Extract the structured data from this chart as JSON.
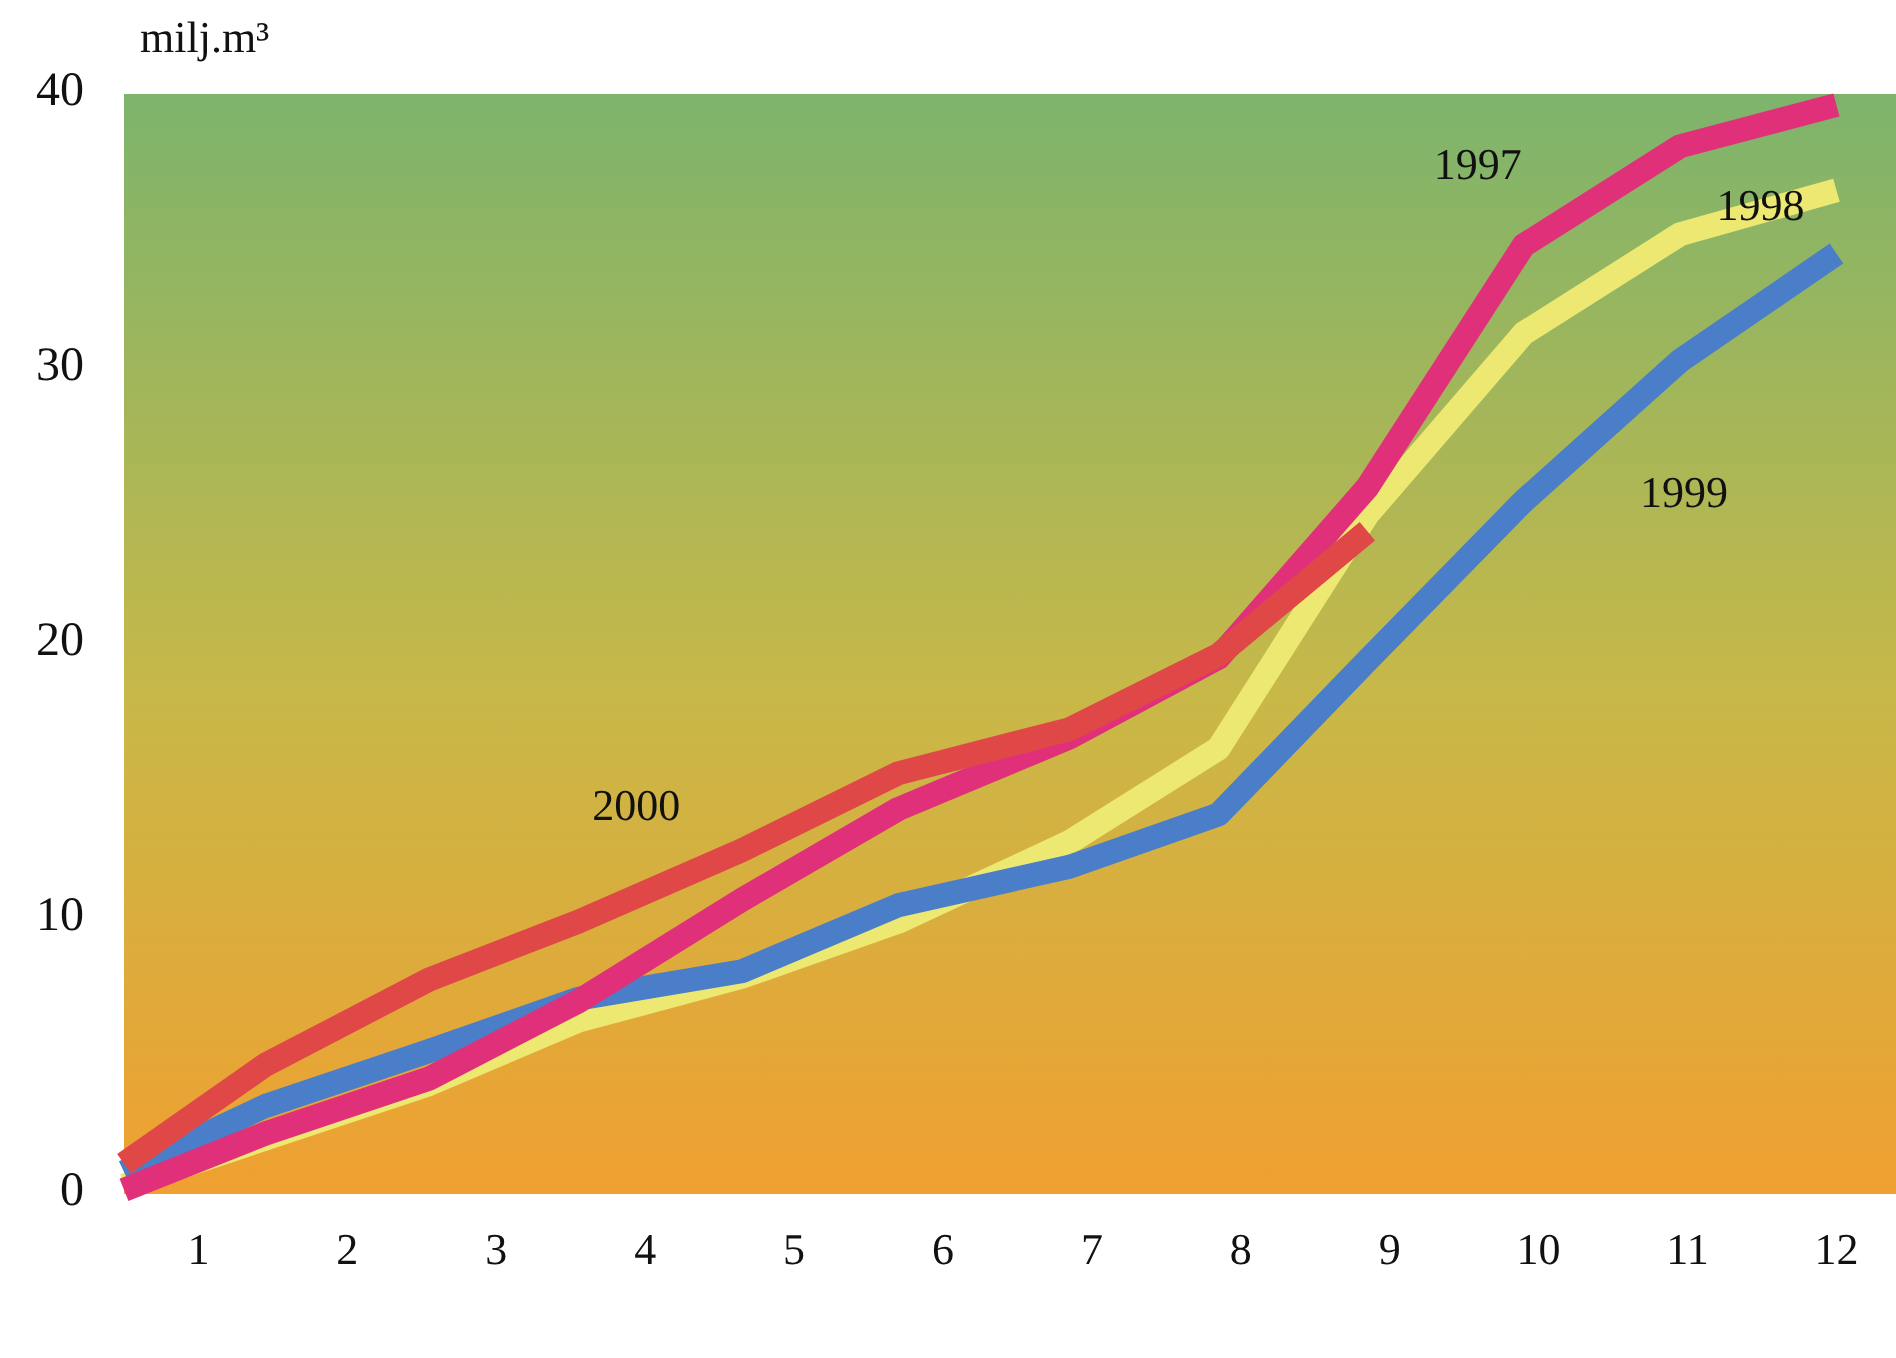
{
  "chart_data": {
    "type": "line",
    "ylabel": "milj.m³",
    "xlim": [
      0.5,
      12.4
    ],
    "xticks": [
      1,
      2,
      3,
      4,
      5,
      6,
      7,
      8,
      9,
      10,
      11,
      12
    ],
    "ylim": [
      0,
      40
    ],
    "yticks": [
      0,
      10,
      20,
      30,
      40
    ],
    "grid": false,
    "marker": "none",
    "line_style": "solid",
    "series": [
      {
        "name": "1998",
        "color": "#ece872",
        "x": [
          0.5,
          2.55,
          3.55,
          4.65,
          5.7,
          6.85,
          7.85,
          8.85,
          9.9,
          10.95,
          12
        ],
        "values": [
          0.3,
          4.0,
          6.3,
          7.9,
          9.9,
          12.8,
          16.2,
          24.7,
          31.3,
          34.9,
          36.5
        ]
      },
      {
        "name": "1999",
        "color": "#4a7ec8",
        "x": [
          0.5,
          1.45,
          2.55,
          3.55,
          4.65,
          5.7,
          6.85,
          7.85,
          8.85,
          9.9,
          10.95,
          12
        ],
        "values": [
          0.8,
          3.2,
          5.2,
          7.1,
          8.1,
          10.5,
          11.9,
          13.8,
          19.4,
          25.2,
          30.3,
          34.2
        ]
      },
      {
        "name": "1997",
        "color": "#e0307a",
        "x": [
          0.5,
          1.45,
          2.55,
          3.55,
          4.65,
          5.7,
          6.85,
          7.85,
          8.85,
          9.9,
          10.95,
          12
        ],
        "values": [
          0.15,
          2.2,
          4.2,
          7.0,
          10.7,
          14.0,
          16.6,
          19.5,
          25.7,
          34.5,
          38.1,
          39.6
        ]
      },
      {
        "name": "2000",
        "color": "#e04848",
        "x": [
          0.5,
          1.45,
          2.55,
          3.55,
          4.65,
          5.7,
          6.85,
          7.85,
          8.85
        ],
        "values": [
          1.1,
          4.7,
          7.8,
          9.9,
          12.5,
          15.3,
          16.9,
          19.6,
          24.1
        ]
      }
    ]
  }
}
